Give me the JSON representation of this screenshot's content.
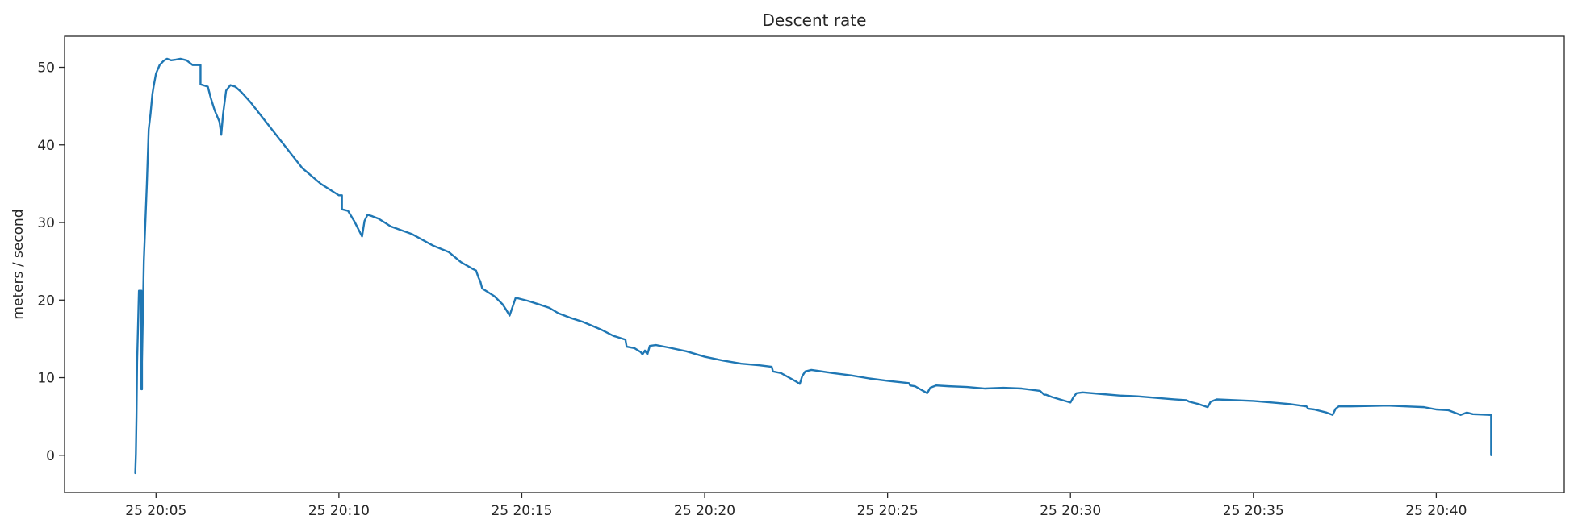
{
  "chart_data": {
    "type": "line",
    "title": "Descent rate",
    "xlabel": "",
    "ylabel": "meters / second",
    "x_axis_kind": "time",
    "xlim": [
      "2023-01-25T20:02:30",
      "2023-01-25T20:43:30"
    ],
    "ylim": [
      -4.8,
      54
    ],
    "x_ticks": [
      {
        "value": "2023-01-25T20:05:00",
        "label": "25 20:05"
      },
      {
        "value": "2023-01-25T20:10:00",
        "label": "25 20:10"
      },
      {
        "value": "2023-01-25T20:15:00",
        "label": "25 20:15"
      },
      {
        "value": "2023-01-25T20:20:00",
        "label": "25 20:20"
      },
      {
        "value": "2023-01-25T20:25:00",
        "label": "25 20:25"
      },
      {
        "value": "2023-01-25T20:30:00",
        "label": "25 20:30"
      },
      {
        "value": "2023-01-25T20:35:00",
        "label": "25 20:35"
      },
      {
        "value": "2023-01-25T20:40:00",
        "label": "25 20:40"
      }
    ],
    "y_ticks": [
      0,
      10,
      20,
      30,
      40,
      50
    ],
    "grid": false,
    "legend": "none",
    "series_color": "#1f77b4",
    "series": [
      {
        "x": [
          "2023-01-25T20:04:26",
          "2023-01-25T20:04:27",
          "2023-01-25T20:04:28",
          "2023-01-25T20:04:29",
          "2023-01-25T20:04:32",
          "2023-01-25T20:04:36",
          "2023-01-25T20:04:36",
          "2023-01-25T20:04:37",
          "2023-01-25T20:04:37",
          "2023-01-25T20:04:40",
          "2023-01-25T20:04:45",
          "2023-01-25T20:04:48",
          "2023-01-25T20:04:51",
          "2023-01-25T20:04:54",
          "2023-01-25T20:04:56",
          "2023-01-25T20:05:00",
          "2023-01-25T20:05:06",
          "2023-01-25T20:05:12",
          "2023-01-25T20:05:18",
          "2023-01-25T20:05:25",
          "2023-01-25T20:05:33",
          "2023-01-25T20:05:40",
          "2023-01-25T20:05:50",
          "2023-01-25T20:06:00",
          "2023-01-25T20:06:13",
          "2023-01-25T20:06:13",
          "2023-01-25T20:06:25",
          "2023-01-25T20:06:30",
          "2023-01-25T20:06:36",
          "2023-01-25T20:06:44",
          "2023-01-25T20:06:47",
          "2023-01-25T20:06:50",
          "2023-01-25T20:06:55",
          "2023-01-25T20:07:02",
          "2023-01-25T20:07:10",
          "2023-01-25T20:07:20",
          "2023-01-25T20:07:35",
          "2023-01-25T20:08:00",
          "2023-01-25T20:08:30",
          "2023-01-25T20:09:00",
          "2023-01-25T20:09:30",
          "2023-01-25T20:10:00",
          "2023-01-25T20:10:05",
          "2023-01-25T20:10:05",
          "2023-01-25T20:10:15",
          "2023-01-25T20:10:25",
          "2023-01-25T20:10:38",
          "2023-01-25T20:10:42",
          "2023-01-25T20:10:47",
          "2023-01-25T20:10:55",
          "2023-01-25T20:11:05",
          "2023-01-25T20:11:15",
          "2023-01-25T20:11:25",
          "2023-01-25T20:12:00",
          "2023-01-25T20:12:35",
          "2023-01-25T20:13:00",
          "2023-01-25T20:13:20",
          "2023-01-25T20:13:40",
          "2023-01-25T20:13:45",
          "2023-01-25T20:13:49",
          "2023-01-25T20:13:52",
          "2023-01-25T20:13:55",
          "2023-01-25T20:14:05",
          "2023-01-25T20:14:15",
          "2023-01-25T20:14:28",
          "2023-01-25T20:14:34",
          "2023-01-25T20:14:40",
          "2023-01-25T20:14:50",
          "2023-01-25T20:15:10",
          "2023-01-25T20:15:30",
          "2023-01-25T20:15:45",
          "2023-01-25T20:16:00",
          "2023-01-25T20:16:20",
          "2023-01-25T20:16:40",
          "2023-01-25T20:16:55",
          "2023-01-25T20:17:10",
          "2023-01-25T20:17:30",
          "2023-01-25T20:17:50",
          "2023-01-25T20:17:52",
          "2023-01-25T20:18:05",
          "2023-01-25T20:18:15",
          "2023-01-25T20:18:18",
          "2023-01-25T20:18:22",
          "2023-01-25T20:18:26",
          "2023-01-25T20:18:30",
          "2023-01-25T20:18:40",
          "2023-01-25T20:19:00",
          "2023-01-25T20:19:30",
          "2023-01-25T20:20:00",
          "2023-01-25T20:20:30",
          "2023-01-25T20:21:00",
          "2023-01-25T20:21:30",
          "2023-01-25T20:21:50",
          "2023-01-25T20:21:52",
          "2023-01-25T20:22:05",
          "2023-01-25T20:22:30",
          "2023-01-25T20:22:36",
          "2023-01-25T20:22:40",
          "2023-01-25T20:22:45",
          "2023-01-25T20:22:55",
          "2023-01-25T20:23:30",
          "2023-01-25T20:24:00",
          "2023-01-25T20:24:30",
          "2023-01-25T20:25:00",
          "2023-01-25T20:25:35",
          "2023-01-25T20:25:37",
          "2023-01-25T20:25:45",
          "2023-01-25T20:26:05",
          "2023-01-25T20:26:10",
          "2023-01-25T20:26:20",
          "2023-01-25T20:26:40",
          "2023-01-25T20:27:10",
          "2023-01-25T20:27:40",
          "2023-01-25T20:28:10",
          "2023-01-25T20:28:40",
          "2023-01-25T20:29:10",
          "2023-01-25T20:29:17",
          "2023-01-25T20:29:20",
          "2023-01-25T20:29:30",
          "2023-01-25T20:30:00",
          "2023-01-25T20:30:05",
          "2023-01-25T20:30:10",
          "2023-01-25T20:30:20",
          "2023-01-25T20:30:50",
          "2023-01-25T20:31:20",
          "2023-01-25T20:31:50",
          "2023-01-25T20:32:20",
          "2023-01-25T20:32:50",
          "2023-01-25T20:33:10",
          "2023-01-25T20:33:15",
          "2023-01-25T20:33:30",
          "2023-01-25T20:33:45",
          "2023-01-25T20:33:50",
          "2023-01-25T20:34:00",
          "2023-01-25T20:34:30",
          "2023-01-25T20:35:00",
          "2023-01-25T20:35:30",
          "2023-01-25T20:36:00",
          "2023-01-25T20:36:27",
          "2023-01-25T20:36:30",
          "2023-01-25T20:36:40",
          "2023-01-25T20:37:00",
          "2023-01-25T20:37:10",
          "2023-01-25T20:37:15",
          "2023-01-25T20:37:20",
          "2023-01-25T20:37:40",
          "2023-01-25T20:38:10",
          "2023-01-25T20:38:40",
          "2023-01-25T20:39:10",
          "2023-01-25T20:39:40",
          "2023-01-25T20:40:00",
          "2023-01-25T20:40:20",
          "2023-01-25T20:40:30",
          "2023-01-25T20:40:40",
          "2023-01-25T20:40:50",
          "2023-01-25T20:41:00",
          "2023-01-25T20:41:30",
          "2023-01-25T20:41:30"
        ],
        "y": [
          -2.3,
          0.2,
          5.0,
          12.0,
          21.2,
          21.2,
          8.5,
          8.5,
          12.0,
          25.0,
          35.0,
          42.0,
          44.0,
          46.5,
          47.5,
          49.2,
          50.3,
          50.8,
          51.1,
          50.9,
          51.0,
          51.1,
          50.9,
          50.3,
          50.3,
          47.8,
          47.5,
          46.0,
          44.5,
          43.0,
          41.3,
          44.0,
          47.0,
          47.7,
          47.5,
          46.8,
          45.5,
          43.0,
          40.0,
          37.0,
          35.0,
          33.5,
          33.5,
          31.7,
          31.5,
          30.2,
          28.2,
          30.2,
          31.0,
          30.8,
          30.5,
          30.0,
          29.5,
          28.5,
          27.0,
          26.2,
          24.9,
          24.0,
          23.8,
          22.9,
          22.4,
          21.5,
          21.0,
          20.5,
          19.5,
          18.8,
          18.0,
          20.3,
          19.9,
          19.4,
          19.0,
          18.3,
          17.7,
          17.2,
          16.7,
          16.2,
          15.4,
          14.9,
          14.0,
          13.8,
          13.3,
          13.0,
          13.5,
          13.0,
          14.1,
          14.2,
          13.9,
          13.4,
          12.7,
          12.2,
          11.8,
          11.6,
          11.4,
          10.8,
          10.6,
          9.5,
          9.2,
          10.2,
          10.8,
          11.0,
          10.6,
          10.3,
          9.9,
          9.6,
          9.3,
          9.0,
          8.9,
          8.0,
          8.7,
          9.0,
          8.9,
          8.8,
          8.6,
          8.7,
          8.6,
          8.3,
          7.8,
          7.8,
          7.5,
          6.8,
          7.5,
          8.0,
          8.1,
          7.9,
          7.7,
          7.6,
          7.4,
          7.2,
          7.1,
          6.9,
          6.6,
          6.2,
          6.9,
          7.2,
          7.1,
          7.0,
          6.8,
          6.6,
          6.3,
          6.0,
          5.9,
          5.5,
          5.2,
          6.0,
          6.3,
          6.3,
          6.35,
          6.4,
          6.3,
          6.2,
          5.9,
          5.8,
          5.5,
          5.2,
          5.5,
          5.3,
          5.2,
          0.0
        ]
      }
    ]
  }
}
